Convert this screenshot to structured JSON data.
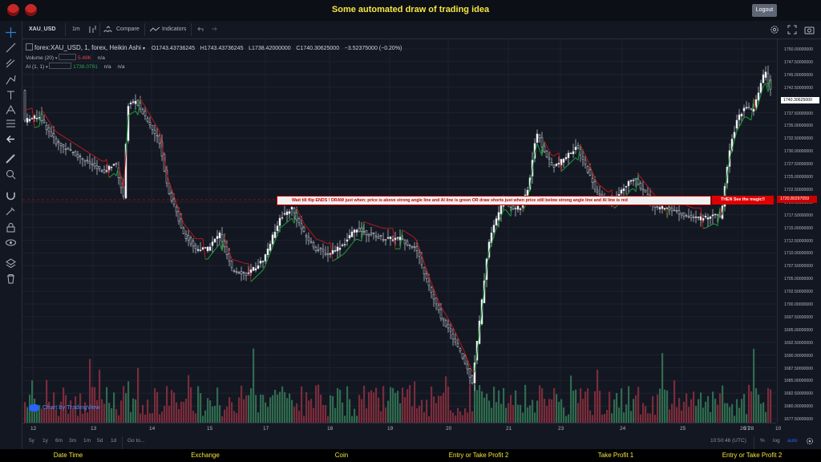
{
  "app": {
    "title": "Some automated draw of trading idea",
    "logout_label": "Logout"
  },
  "toolbar": {
    "symbol": "XAU_USD",
    "interval": "1m",
    "compare_label": "Compare",
    "indicators_label": "Indicators",
    "undo_icon": "undo-icon",
    "redo_icon": "redo-icon"
  },
  "legend": {
    "symbol_line": "forex:XAU_USD, 1, forex, Heikin Ashi",
    "open": "O1743.43736245",
    "high": "H1743.43736245",
    "low": "L1738.42000000",
    "close": "C1740.30625000",
    "change": "−3.52375000 (−0.20%)",
    "volume_label": "Volume (20)",
    "volume_value": "5.48K",
    "volume_na": "n/a",
    "ai_label": "AI (1, 1)",
    "ai_value": "1738.0791",
    "ai_na1": "n/a",
    "ai_na2": "n/a"
  },
  "annotation": {
    "text": "Wait till flip ENDS  !   DRAW just when:  price is above strong angle line and AI line is green        OR         draw shorts just when price still below strong angle line and AI line is red",
    "magic": "THEN See the magic!!"
  },
  "price_axis": {
    "labels": [
      "1750.00000000",
      "1747.50000000",
      "1745.00000000",
      "1742.50000000",
      "1740.00000000",
      "1737.50000000",
      "1735.00000000",
      "1732.50000000",
      "1730.00000000",
      "1727.50000000",
      "1725.00000000",
      "1722.50000000",
      "1720.00000000",
      "1717.50000000",
      "1715.00000000",
      "1712.50000000",
      "1710.00000000",
      "1707.50000000",
      "1705.00000000",
      "1702.50000000",
      "1700.00000000",
      "1697.50000000",
      "1695.00000000",
      "1692.50000000",
      "1690.00000000",
      "1687.50000000",
      "1685.00000000",
      "1682.50000000",
      "1680.00000000",
      "1677.50000000"
    ],
    "last_price": "1740.30625000",
    "red_price": "1720.80297059"
  },
  "time_axis": {
    "labels": [
      "12",
      "13",
      "14",
      "15",
      "17",
      "18",
      "19",
      "20",
      "21",
      "23",
      "24",
      "25",
      "26",
      "27",
      "28",
      "10"
    ]
  },
  "bottom": {
    "ranges": [
      "5y",
      "1y",
      "6m",
      "3m",
      "1m",
      "5d",
      "1d"
    ],
    "goto": "Go to...",
    "clock": "10:50:46 (UTC)",
    "percent": "%",
    "log": "log",
    "auto": "auto"
  },
  "watermark": "Chart by TradingView",
  "footer": [
    "Date Time",
    "Exchange",
    "Coin",
    "Entry or Take Profit 2",
    "Take Profit 1",
    "Entry or Take Profit 2"
  ],
  "colors": {
    "background": "#131722",
    "up": "#ffffff",
    "down": "#131722",
    "ai_green": "#1e9e3a",
    "ai_red": "#b51a1a",
    "vol_up": "#2f6b4f",
    "vol_down": "#7a2c3a",
    "title": "#f5e642"
  }
}
